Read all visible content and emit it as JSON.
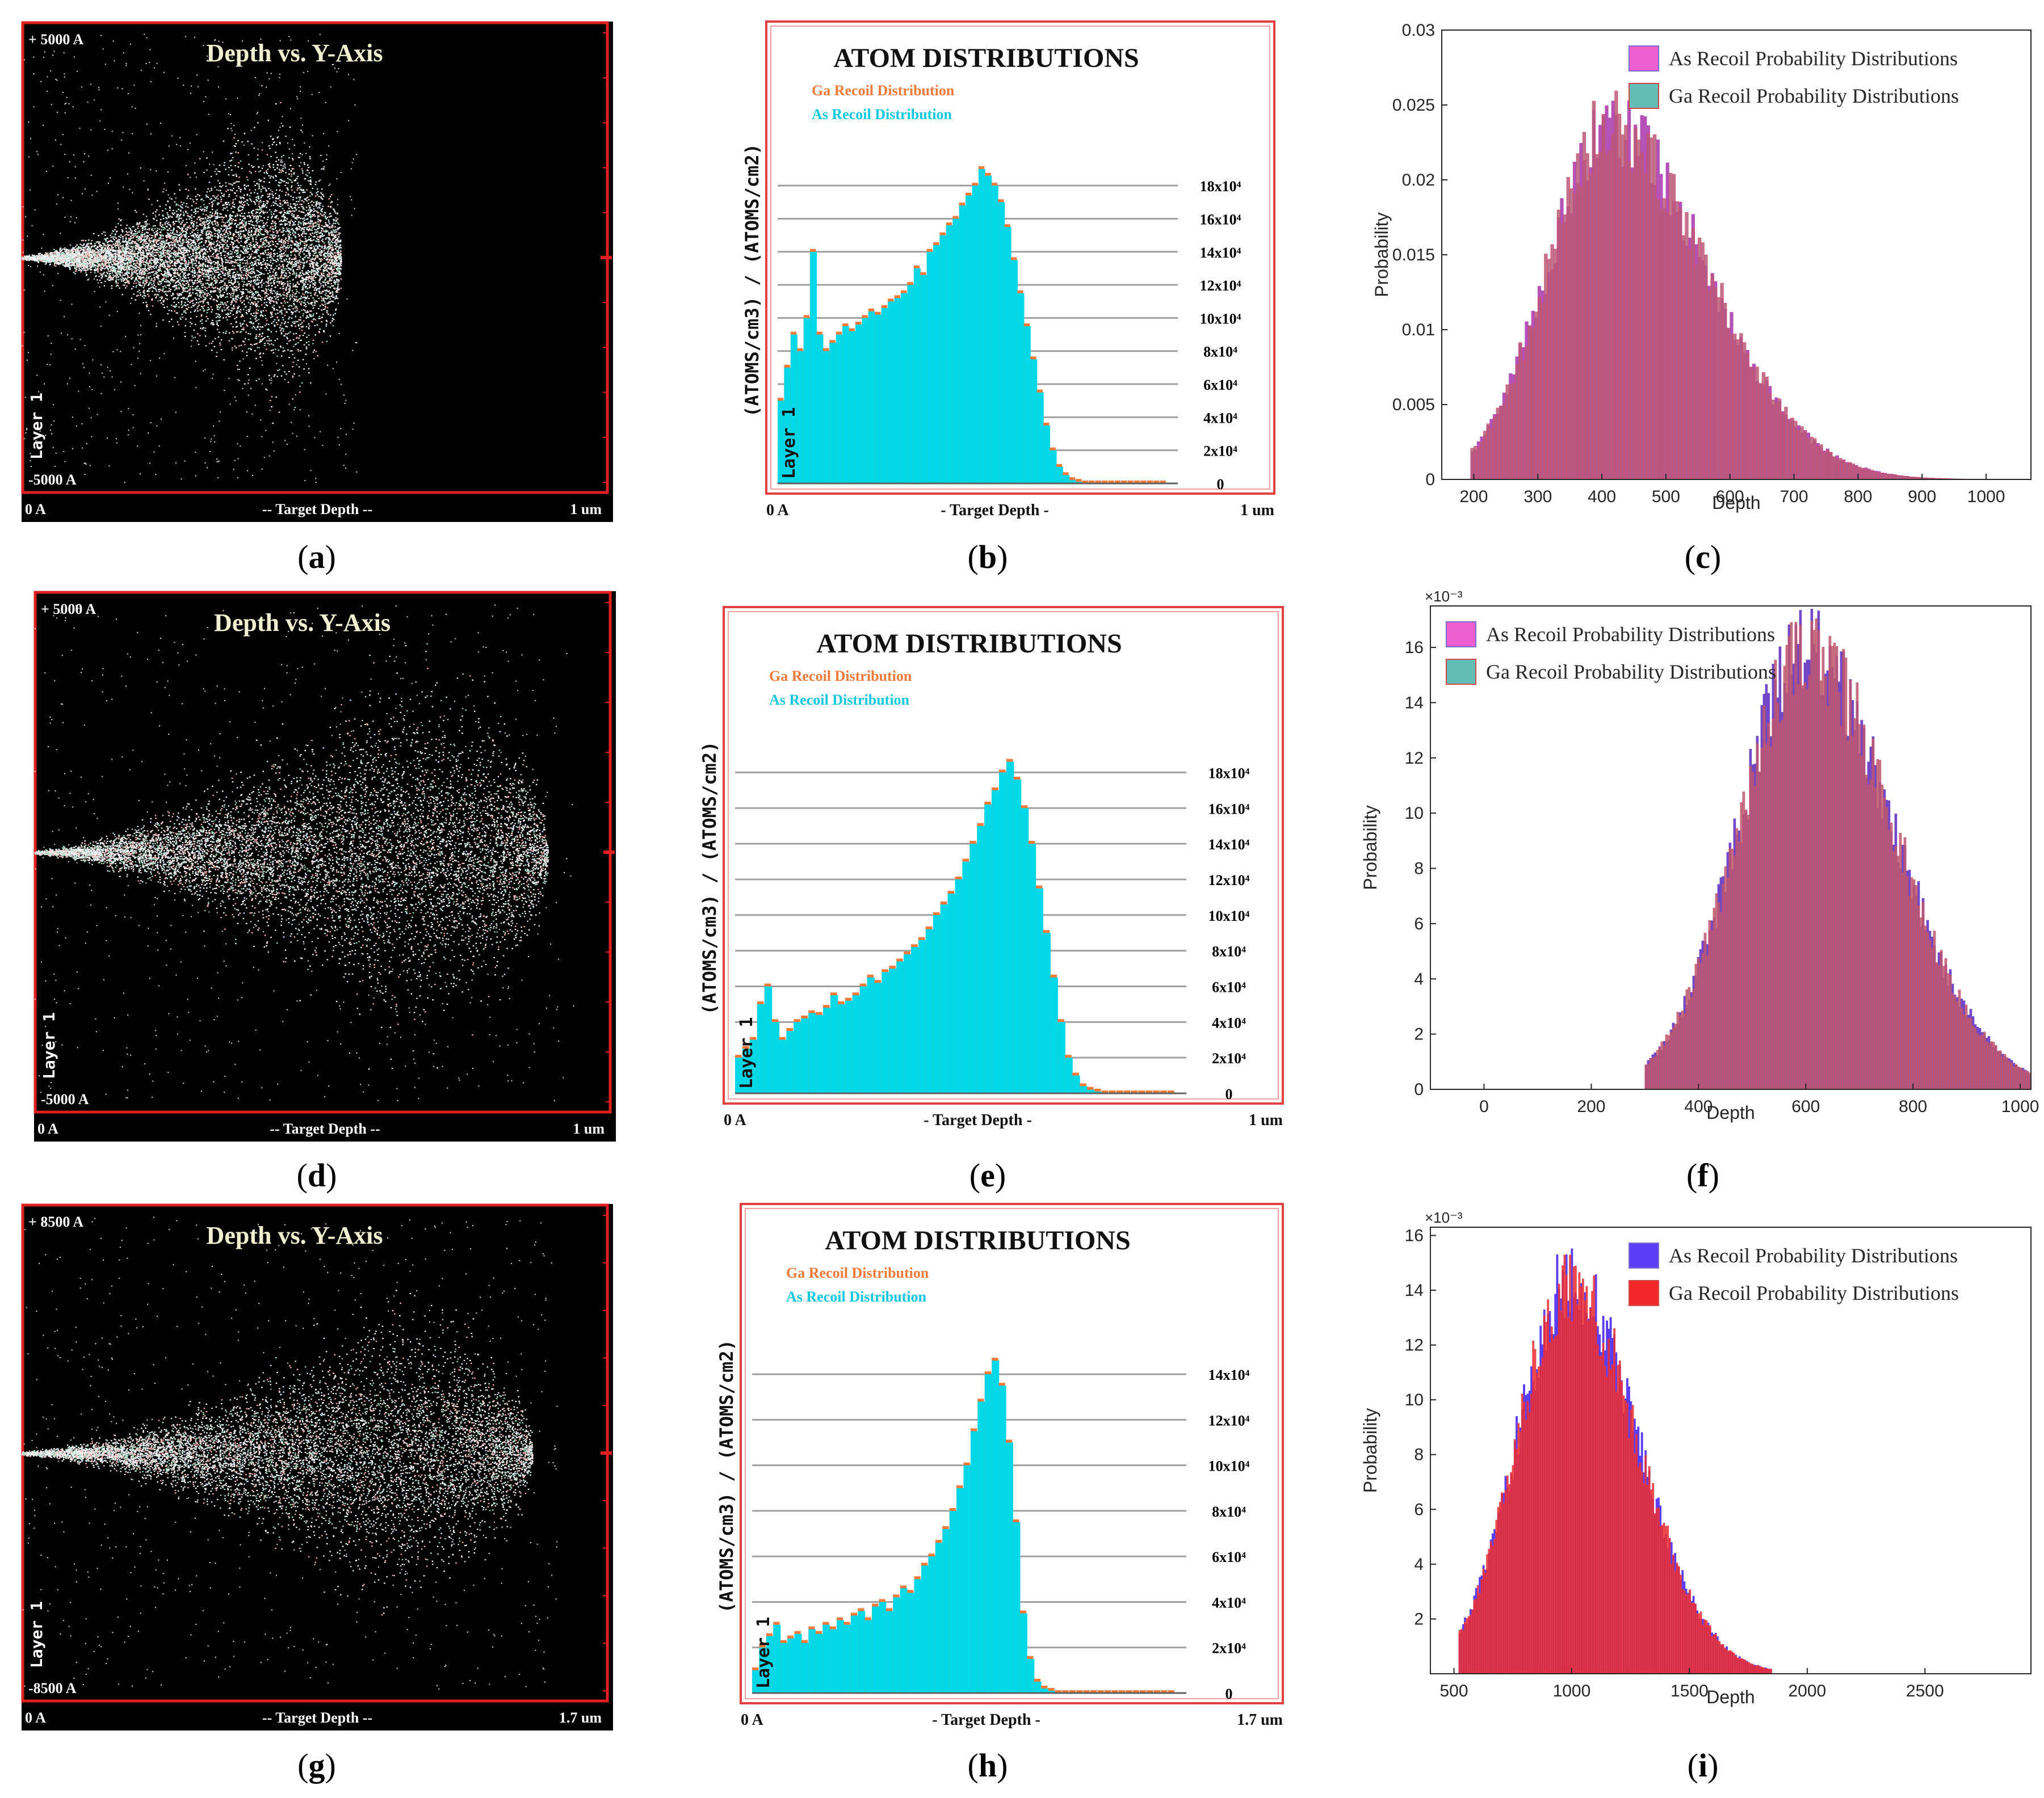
{
  "chart_data": [
    {
      "id": "a",
      "type": "scatter",
      "title": "Depth vs. Y-Axis",
      "top_label": "+ 5000 A",
      "bottom_label": "-5000 A",
      "x_start": "0 A",
      "x_label": "-- Target Depth --",
      "x_end": "1 um",
      "layer_label": "Layer 1",
      "cloud": {
        "center_frac": 0.42,
        "spread": 0.42,
        "depth_frac": 0.55
      },
      "caption": "a"
    },
    {
      "id": "b",
      "type": "bar",
      "title": "ATOM DISTRIBUTIONS",
      "legend": [
        "Ga Recoil Distribution",
        "As Recoil Distribution"
      ],
      "y_label": "(ATOMS/cm3) / (ATOMS/cm2)",
      "layer_label": "Layer 1",
      "x_start": "0 A",
      "x_label": "- Target Depth -",
      "x_end": "1 um",
      "yticks": [
        "0",
        "2x10⁴",
        "4x10⁴",
        "6x10⁴",
        "8x10⁴",
        "10x10⁴",
        "12x10⁴",
        "14x10⁴",
        "16x10⁴",
        "18x10⁴"
      ],
      "ymax": 20,
      "values": [
        5,
        7,
        9,
        8,
        10,
        14,
        9,
        8,
        8.5,
        9,
        9.5,
        9.2,
        9.6,
        10,
        10.4,
        10.2,
        10.6,
        11,
        11.2,
        11.5,
        12,
        13,
        12.6,
        14,
        14.4,
        15,
        15.6,
        16,
        16.8,
        17.4,
        18,
        19,
        18.6,
        18,
        17,
        15.5,
        13.5,
        11.5,
        9.5,
        7.5,
        5.5,
        3.5,
        2,
        1,
        0.5,
        0.2,
        0.1,
        0,
        0,
        0,
        0,
        0,
        0,
        0,
        0,
        0,
        0,
        0,
        0,
        0
      ],
      "caption": "b"
    },
    {
      "id": "c",
      "type": "bar",
      "xlabel": "Depth",
      "ylabel": "Probability",
      "xlim": [
        150,
        1070
      ],
      "ylim": [
        0,
        0.03
      ],
      "xticks": [
        "200",
        "300",
        "400",
        "500",
        "600",
        "700",
        "800",
        "900",
        "1000"
      ],
      "yticks": [
        "0",
        "0.005",
        "0.01",
        "0.015",
        "0.02",
        "0.025",
        "0.03"
      ],
      "legend": [
        "As Recoil  Probability Distributions",
        "Ga Recoil  Probability Distributions"
      ],
      "colors": {
        "as": "#b452b8",
        "ga": "#b75a7c",
        "as_key": "#ee5fd0",
        "ga_key": "#63bdb5"
      },
      "dist": {
        "mu": 410,
        "sigma": 95,
        "peak": 0.0235,
        "tail": 1.6,
        "start": 195,
        "end": 1045
      },
      "caption": "c"
    },
    {
      "id": "d",
      "type": "scatter",
      "title": "Depth vs. Y-Axis",
      "top_label": "+ 5000 A",
      "bottom_label": "-5000 A",
      "x_start": "0 A",
      "x_label": "-- Target Depth --",
      "x_end": "1 um",
      "layer_label": "Layer 1",
      "cloud": {
        "center_frac": 0.62,
        "spread": 0.5,
        "depth_frac": 0.9
      },
      "caption": "d"
    },
    {
      "id": "e",
      "type": "bar",
      "title": "ATOM DISTRIBUTIONS",
      "legend": [
        "Ga Recoil Distribution",
        "As Recoil Distribution"
      ],
      "y_label": "(ATOMS/cm3) / (ATOMS/cm2)",
      "layer_label": "Layer 1",
      "x_start": "0 A",
      "x_label": "- Target Depth -",
      "x_end": "1 um",
      "yticks": [
        "0",
        "2x10⁴",
        "4x10⁴",
        "6x10⁴",
        "8x10⁴",
        "10x10⁴",
        "12x10⁴",
        "14x10⁴",
        "16x10⁴",
        "18x10⁴"
      ],
      "ymax": 20,
      "values": [
        2,
        2.5,
        3,
        5,
        6,
        4,
        3,
        3.5,
        4,
        4.2,
        4.5,
        4.4,
        4.8,
        5.5,
        5,
        5.2,
        5.5,
        6,
        6.5,
        6.2,
        6.8,
        7,
        7.4,
        7.8,
        8.2,
        8.6,
        9.2,
        10,
        10.6,
        11.2,
        12,
        13,
        14,
        15,
        16.2,
        17,
        18,
        18.6,
        17.6,
        16,
        14,
        11.5,
        9,
        6.5,
        4,
        2,
        1,
        0.4,
        0.2,
        0.1,
        0,
        0,
        0,
        0,
        0,
        0,
        0,
        0,
        0,
        0
      ],
      "caption": "e"
    },
    {
      "id": "f",
      "type": "bar",
      "xlabel": "Depth",
      "ylabel": "Probability",
      "xlim": [
        -100,
        1020
      ],
      "ylim": [
        0,
        17.5
      ],
      "y_exponent": "×10⁻³",
      "xticks": [
        "0",
        "200",
        "400",
        "600",
        "800",
        "1000"
      ],
      "yticks": [
        "0",
        "2",
        "4",
        "6",
        "8",
        "10",
        "12",
        "14",
        "16"
      ],
      "legend": [
        "As Recoil  Probability Distributions",
        "Ga Recoil  Probability Distributions"
      ],
      "colors": {
        "as": "#7048c8",
        "ga": "#b65a74",
        "as_key": "#ee5fd0",
        "ga_key": "#63bdb5"
      },
      "dist": {
        "mu": 600,
        "sigma": 125,
        "peak": 15.8,
        "tail": 1.3,
        "start": 300,
        "end": 1020
      },
      "caption": "f"
    },
    {
      "id": "g",
      "type": "scatter",
      "title": "Depth vs. Y-Axis",
      "top_label": "+ 8500 A",
      "bottom_label": "-8500 A",
      "x_start": "0 A",
      "x_label": "-- Target Depth --",
      "x_end": "1.7 um",
      "layer_label": "Layer 1",
      "cloud": {
        "center_frac": 0.6,
        "spread": 0.4,
        "depth_frac": 0.88
      },
      "caption": "g"
    },
    {
      "id": "h",
      "type": "bar",
      "title": "ATOM DISTRIBUTIONS",
      "legend": [
        "Ga Recoil Distribution",
        "As Recoil Distribution"
      ],
      "y_label": "(ATOMS/cm3) / (ATOMS/cm2)",
      "layer_label": "Layer 1",
      "x_start": "0 A",
      "x_label": "- Target Depth -",
      "x_end": "1.7 um",
      "yticks": [
        "0",
        "2x10⁴",
        "4x10⁴",
        "6x10⁴",
        "8x10⁴",
        "10x10⁴",
        "12x10⁴",
        "14x10⁴"
      ],
      "ymax": 16,
      "values": [
        1,
        2,
        2.5,
        3,
        2.2,
        2.4,
        2.6,
        2.2,
        2.8,
        2.6,
        3,
        2.8,
        3.2,
        3,
        3.4,
        3.6,
        3.2,
        3.8,
        4,
        3.6,
        4.2,
        4.6,
        4.4,
        5,
        5.6,
        6,
        6.6,
        7.2,
        8,
        9,
        10,
        11.5,
        12.8,
        14,
        14.6,
        13.5,
        11,
        7.5,
        3.5,
        1.5,
        0.5,
        0.2,
        0.1,
        0,
        0,
        0,
        0,
        0,
        0,
        0,
        0,
        0,
        0,
        0,
        0,
        0,
        0,
        0,
        0,
        0
      ],
      "caption": "h"
    },
    {
      "id": "i",
      "type": "bar",
      "xlabel": "Depth",
      "ylabel": "Probability",
      "xlim": [
        400,
        2950
      ],
      "ylim": [
        0,
        16.3
      ],
      "y_exponent": "×10⁻³",
      "xticks": [
        "500",
        "1000",
        "1500",
        "2000",
        "2500"
      ],
      "yticks": [
        "2",
        "4",
        "6",
        "8",
        "10",
        "12",
        "14",
        "16"
      ],
      "legend": [
        "As Recoil  Probability Distributions",
        "Ga Recoil  Probability Distributions"
      ],
      "colors": {
        "as": "#5a3df5",
        "ga": "#f02828",
        "as_key": "#5a3df5",
        "ga_key": "#f02828"
      },
      "dist": {
        "mu": 990,
        "sigma": 220,
        "peak": 14.2,
        "tail": 1.3,
        "start": 520,
        "end": 1850
      },
      "caption": "i"
    }
  ]
}
